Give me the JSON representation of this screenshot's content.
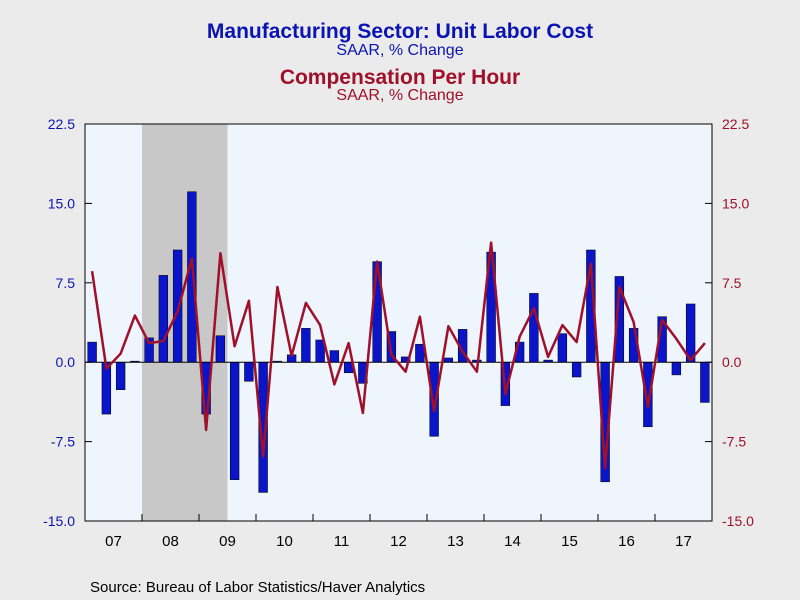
{
  "chart_data": {
    "type": "bar+line",
    "title": "Manufacturing Sector: Unit Labor Cost",
    "subtitle": "SAAR, % Change",
    "title2": "Compensation Per Hour",
    "subtitle2": "SAAR, % Change",
    "source": "Source:  Bureau of Labor Statistics/Haver Analytics",
    "ylim": [
      -15,
      22.5
    ],
    "yticks": [
      "22.5",
      "15.0",
      "7.5",
      "0.0",
      "-7.5",
      "-15.0"
    ],
    "year_labels": [
      "07",
      "08",
      "09",
      "10",
      "11",
      "12",
      "13",
      "14",
      "15",
      "16",
      "17"
    ],
    "recession": {
      "start": "2008Q1",
      "end": "2009Q2"
    },
    "quarters": [
      "2007Q1",
      "2007Q2",
      "2007Q3",
      "2007Q4",
      "2008Q1",
      "2008Q2",
      "2008Q3",
      "2008Q4",
      "2009Q1",
      "2009Q2",
      "2009Q3",
      "2009Q4",
      "2010Q1",
      "2010Q2",
      "2010Q3",
      "2010Q4",
      "2011Q1",
      "2011Q2",
      "2011Q3",
      "2011Q4",
      "2012Q1",
      "2012Q2",
      "2012Q3",
      "2012Q4",
      "2013Q1",
      "2013Q2",
      "2013Q3",
      "2013Q4",
      "2014Q1",
      "2014Q2",
      "2014Q3",
      "2014Q4",
      "2015Q1",
      "2015Q2",
      "2015Q3",
      "2015Q4",
      "2016Q1",
      "2016Q2",
      "2016Q3",
      "2016Q4",
      "2017Q1",
      "2017Q2",
      "2017Q3",
      "2017Q4"
    ],
    "series": [
      {
        "name": "Manufacturing Sector: Unit Labor Cost",
        "type": "bar",
        "color": "#0a14c8",
        "values": [
          1.9,
          -4.9,
          -2.6,
          0.1,
          2.3,
          8.2,
          10.6,
          16.1,
          -4.9,
          2.5,
          -11.1,
          -1.8,
          -12.3,
          0.1,
          0.7,
          3.2,
          2.1,
          1.1,
          -1.0,
          -2.0,
          9.5,
          2.9,
          0.5,
          1.7,
          -7.0,
          0.4,
          3.1,
          0.2,
          10.4,
          -4.1,
          1.9,
          6.5,
          0.2,
          2.7,
          -1.4,
          10.6,
          -11.3,
          8.1,
          3.2,
          -6.1,
          4.3,
          -1.2,
          5.5,
          -3.8
        ]
      },
      {
        "name": "Compensation Per Hour",
        "type": "line",
        "color": "#a0102a",
        "values": [
          8.6,
          -0.6,
          0.8,
          4.4,
          1.8,
          2.0,
          4.8,
          9.8,
          -6.4,
          10.3,
          1.5,
          5.8,
          -8.9,
          7.1,
          0.6,
          5.6,
          3.5,
          -2.1,
          1.8,
          -4.8,
          9.5,
          0.7,
          -0.9,
          4.3,
          -4.6,
          3.4,
          1.0,
          -0.9,
          11.3,
          -3.0,
          2.4,
          5.1,
          0.5,
          3.5,
          1.9,
          9.3,
          -10.0,
          7.1,
          3.8,
          -4.2,
          4.0,
          2.2,
          0.2,
          1.8
        ]
      }
    ]
  }
}
